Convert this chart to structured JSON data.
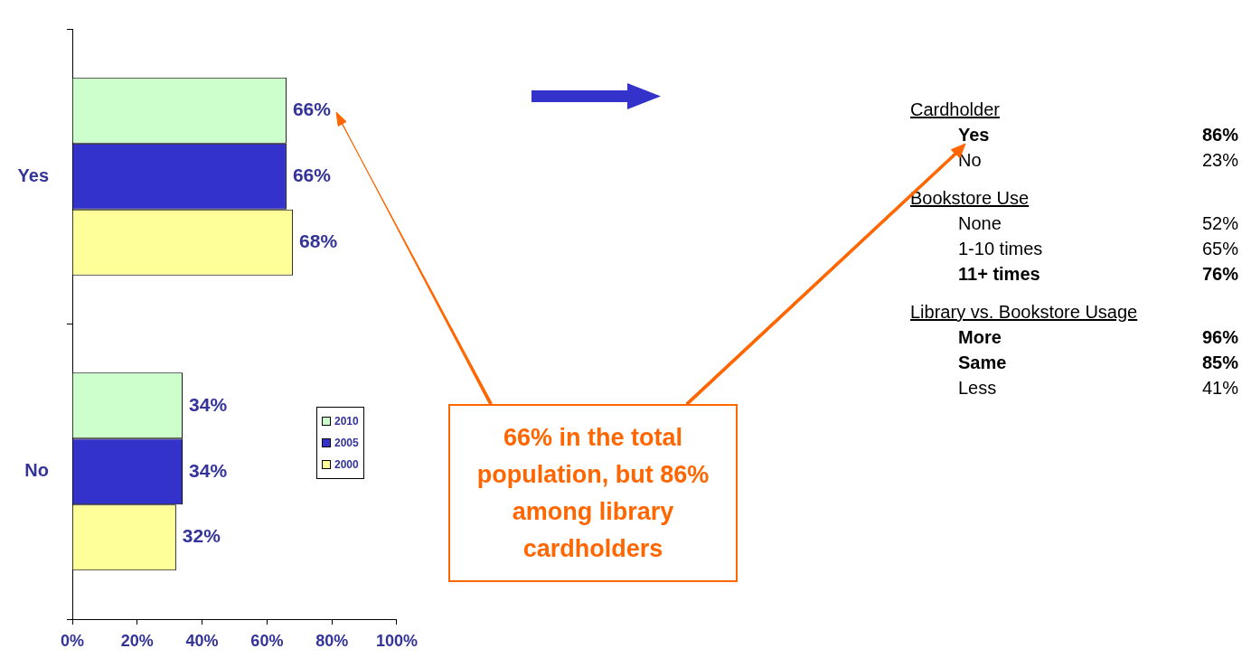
{
  "chart_data": [
    {
      "type": "bar",
      "orientation": "horizontal",
      "categories": [
        "Yes",
        "No"
      ],
      "series": [
        {
          "name": "2010",
          "color": "#ccffcc",
          "values": [
            66,
            34
          ],
          "value_labels": [
            "66%",
            "34%"
          ]
        },
        {
          "name": "2005",
          "color": "#3333cc",
          "values": [
            66,
            34
          ],
          "value_labels": [
            "66%",
            "34%"
          ]
        },
        {
          "name": "2000",
          "color": "#ffff99",
          "values": [
            68,
            32
          ],
          "value_labels": [
            "68%",
            "32%"
          ]
        }
      ],
      "xlim": [
        0,
        100
      ],
      "xticks": [
        {
          "value": 0,
          "label": "0%"
        },
        {
          "value": 20,
          "label": "20%"
        },
        {
          "value": 40,
          "label": "40%"
        },
        {
          "value": 60,
          "label": "60%"
        },
        {
          "value": 80,
          "label": "80%"
        },
        {
          "value": 100,
          "label": "100%"
        }
      ],
      "grid": false,
      "legend": "bottom right",
      "annotations": [
        "66% in the total population, but 86% among library cardholders"
      ]
    },
    {
      "type": "other",
      "annotations": [
        "Cardholder",
        "Yes",
        "86%",
        "No",
        "23%",
        "Bookstore Use",
        "None",
        "52%",
        "1-10 times",
        "65%",
        "11+ times",
        "76%",
        "Library vs. Bookstore Usage",
        "More",
        "96%",
        "Same",
        "85%",
        "Less",
        "41%"
      ]
    }
  ]
}
